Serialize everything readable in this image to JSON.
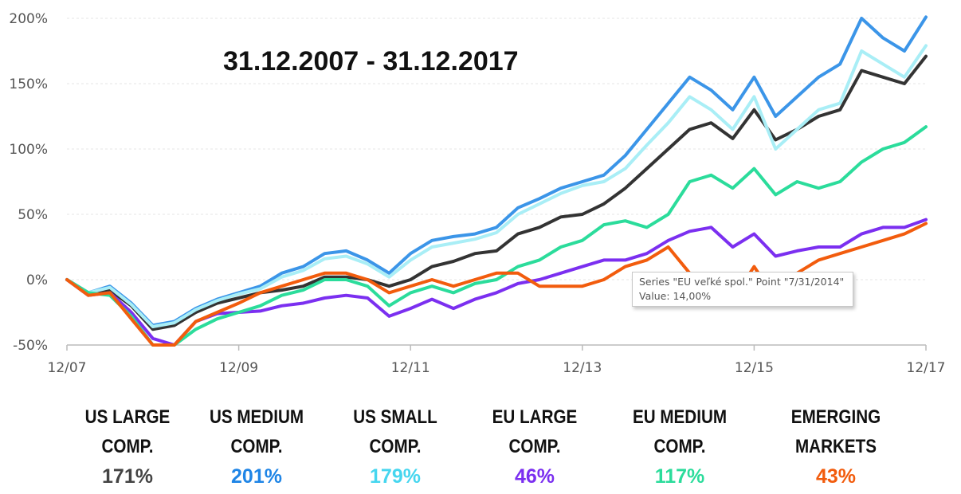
{
  "chart_data": {
    "type": "line",
    "title": "31.12.2007 - 31.12.2017",
    "y_ticks": [
      "200%",
      "150%",
      "100%",
      "50%",
      "0%",
      "-50%"
    ],
    "y_tick_values": [
      200,
      150,
      100,
      50,
      0,
      -50
    ],
    "x_ticks": [
      "12/07",
      "12/09",
      "12/11",
      "12/13",
      "12/15",
      "12/17"
    ],
    "ylim": [
      -50,
      205
    ],
    "xlim": [
      2007.92,
      2017.92
    ],
    "grid": true,
    "series": [
      {
        "name": "US LARGE COMP.",
        "color": "#333333",
        "points": [
          [
            2007.92,
            0
          ],
          [
            2008.17,
            -10
          ],
          [
            2008.42,
            -8
          ],
          [
            2008.67,
            -20
          ],
          [
            2008.92,
            -38
          ],
          [
            2009.17,
            -35
          ],
          [
            2009.42,
            -25
          ],
          [
            2009.67,
            -18
          ],
          [
            2009.92,
            -14
          ],
          [
            2010.17,
            -10
          ],
          [
            2010.42,
            -8
          ],
          [
            2010.67,
            -5
          ],
          [
            2010.92,
            2
          ],
          [
            2011.17,
            2
          ],
          [
            2011.42,
            0
          ],
          [
            2011.67,
            -5
          ],
          [
            2011.92,
            0
          ],
          [
            2012.17,
            10
          ],
          [
            2012.42,
            14
          ],
          [
            2012.67,
            20
          ],
          [
            2012.92,
            22
          ],
          [
            2013.17,
            35
          ],
          [
            2013.42,
            40
          ],
          [
            2013.67,
            48
          ],
          [
            2013.92,
            50
          ],
          [
            2014.17,
            58
          ],
          [
            2014.42,
            70
          ],
          [
            2014.67,
            85
          ],
          [
            2014.92,
            100
          ],
          [
            2015.17,
            115
          ],
          [
            2015.42,
            120
          ],
          [
            2015.67,
            108
          ],
          [
            2015.92,
            130
          ],
          [
            2016.17,
            107
          ],
          [
            2016.42,
            115
          ],
          [
            2016.67,
            125
          ],
          [
            2016.92,
            130
          ],
          [
            2017.17,
            160
          ],
          [
            2017.42,
            155
          ],
          [
            2017.67,
            150
          ],
          [
            2017.92,
            171
          ]
        ]
      },
      {
        "name": "US MEDIUM COMP.",
        "color": "#3b95e8",
        "points": [
          [
            2007.92,
            0
          ],
          [
            2008.17,
            -10
          ],
          [
            2008.42,
            -5
          ],
          [
            2008.67,
            -18
          ],
          [
            2008.92,
            -35
          ],
          [
            2009.17,
            -32
          ],
          [
            2009.42,
            -22
          ],
          [
            2009.67,
            -15
          ],
          [
            2009.92,
            -10
          ],
          [
            2010.17,
            -5
          ],
          [
            2010.42,
            5
          ],
          [
            2010.67,
            10
          ],
          [
            2010.92,
            20
          ],
          [
            2011.17,
            22
          ],
          [
            2011.42,
            15
          ],
          [
            2011.67,
            5
          ],
          [
            2011.92,
            20
          ],
          [
            2012.17,
            30
          ],
          [
            2012.42,
            33
          ],
          [
            2012.67,
            35
          ],
          [
            2012.92,
            40
          ],
          [
            2013.17,
            55
          ],
          [
            2013.42,
            62
          ],
          [
            2013.67,
            70
          ],
          [
            2013.92,
            75
          ],
          [
            2014.17,
            80
          ],
          [
            2014.42,
            95
          ],
          [
            2014.67,
            115
          ],
          [
            2014.92,
            135
          ],
          [
            2015.17,
            155
          ],
          [
            2015.42,
            145
          ],
          [
            2015.67,
            130
          ],
          [
            2015.92,
            155
          ],
          [
            2016.17,
            125
          ],
          [
            2016.42,
            140
          ],
          [
            2016.67,
            155
          ],
          [
            2016.92,
            165
          ],
          [
            2017.17,
            200
          ],
          [
            2017.42,
            185
          ],
          [
            2017.67,
            175
          ],
          [
            2017.92,
            201
          ]
        ]
      },
      {
        "name": "US SMALL COMP.",
        "color": "#a9eef6",
        "points": [
          [
            2007.92,
            0
          ],
          [
            2008.17,
            -10
          ],
          [
            2008.42,
            -6
          ],
          [
            2008.67,
            -19
          ],
          [
            2008.92,
            -36
          ],
          [
            2009.17,
            -33
          ],
          [
            2009.42,
            -23
          ],
          [
            2009.67,
            -16
          ],
          [
            2009.92,
            -11
          ],
          [
            2010.17,
            -7
          ],
          [
            2010.42,
            2
          ],
          [
            2010.67,
            7
          ],
          [
            2010.92,
            16
          ],
          [
            2011.17,
            18
          ],
          [
            2011.42,
            12
          ],
          [
            2011.67,
            2
          ],
          [
            2011.92,
            15
          ],
          [
            2012.17,
            25
          ],
          [
            2012.42,
            28
          ],
          [
            2012.67,
            31
          ],
          [
            2012.92,
            36
          ],
          [
            2013.17,
            50
          ],
          [
            2013.42,
            58
          ],
          [
            2013.67,
            66
          ],
          [
            2013.92,
            72
          ],
          [
            2014.17,
            75
          ],
          [
            2014.42,
            85
          ],
          [
            2014.67,
            103
          ],
          [
            2014.92,
            120
          ],
          [
            2015.17,
            140
          ],
          [
            2015.42,
            130
          ],
          [
            2015.67,
            115
          ],
          [
            2015.92,
            140
          ],
          [
            2016.17,
            100
          ],
          [
            2016.42,
            115
          ],
          [
            2016.67,
            130
          ],
          [
            2016.92,
            135
          ],
          [
            2017.17,
            175
          ],
          [
            2017.42,
            165
          ],
          [
            2017.67,
            155
          ],
          [
            2017.92,
            179
          ]
        ]
      },
      {
        "name": "EU LARGE COMP.",
        "color": "#7b2ff0",
        "points": [
          [
            2007.92,
            0
          ],
          [
            2008.17,
            -12
          ],
          [
            2008.42,
            -10
          ],
          [
            2008.67,
            -25
          ],
          [
            2008.92,
            -45
          ],
          [
            2009.17,
            -50
          ],
          [
            2009.42,
            -32
          ],
          [
            2009.67,
            -26
          ],
          [
            2009.92,
            -25
          ],
          [
            2010.17,
            -24
          ],
          [
            2010.42,
            -20
          ],
          [
            2010.67,
            -18
          ],
          [
            2010.92,
            -14
          ],
          [
            2011.17,
            -12
          ],
          [
            2011.42,
            -14
          ],
          [
            2011.67,
            -28
          ],
          [
            2011.92,
            -22
          ],
          [
            2012.17,
            -15
          ],
          [
            2012.42,
            -22
          ],
          [
            2012.67,
            -15
          ],
          [
            2012.92,
            -10
          ],
          [
            2013.17,
            -3
          ],
          [
            2013.42,
            0
          ],
          [
            2013.67,
            5
          ],
          [
            2013.92,
            10
          ],
          [
            2014.17,
            15
          ],
          [
            2014.42,
            15
          ],
          [
            2014.67,
            20
          ],
          [
            2014.92,
            30
          ],
          [
            2015.17,
            37
          ],
          [
            2015.42,
            40
          ],
          [
            2015.67,
            25
          ],
          [
            2015.92,
            35
          ],
          [
            2016.17,
            18
          ],
          [
            2016.42,
            22
          ],
          [
            2016.67,
            25
          ],
          [
            2016.92,
            25
          ],
          [
            2017.17,
            35
          ],
          [
            2017.42,
            40
          ],
          [
            2017.67,
            40
          ],
          [
            2017.92,
            46
          ]
        ]
      },
      {
        "name": "EU MEDIUM COMP.",
        "color": "#2bdc9b",
        "points": [
          [
            2007.92,
            0
          ],
          [
            2008.17,
            -10
          ],
          [
            2008.42,
            -12
          ],
          [
            2008.67,
            -28
          ],
          [
            2008.92,
            -50
          ],
          [
            2009.17,
            -50
          ],
          [
            2009.42,
            -38
          ],
          [
            2009.67,
            -30
          ],
          [
            2009.92,
            -25
          ],
          [
            2010.17,
            -20
          ],
          [
            2010.42,
            -12
          ],
          [
            2010.67,
            -8
          ],
          [
            2010.92,
            0
          ],
          [
            2011.17,
            0
          ],
          [
            2011.42,
            -5
          ],
          [
            2011.67,
            -20
          ],
          [
            2011.92,
            -10
          ],
          [
            2012.17,
            -5
          ],
          [
            2012.42,
            -10
          ],
          [
            2012.67,
            -3
          ],
          [
            2012.92,
            0
          ],
          [
            2013.17,
            10
          ],
          [
            2013.42,
            15
          ],
          [
            2013.67,
            25
          ],
          [
            2013.92,
            30
          ],
          [
            2014.17,
            42
          ],
          [
            2014.42,
            45
          ],
          [
            2014.67,
            40
          ],
          [
            2014.92,
            50
          ],
          [
            2015.17,
            75
          ],
          [
            2015.42,
            80
          ],
          [
            2015.67,
            70
          ],
          [
            2015.92,
            85
          ],
          [
            2016.17,
            65
          ],
          [
            2016.42,
            75
          ],
          [
            2016.67,
            70
          ],
          [
            2016.92,
            75
          ],
          [
            2017.17,
            90
          ],
          [
            2017.42,
            100
          ],
          [
            2017.67,
            105
          ],
          [
            2017.92,
            117
          ]
        ]
      },
      {
        "name": "EMERGING MARKETS",
        "color": "#f25c0d",
        "points": [
          [
            2007.92,
            0
          ],
          [
            2008.17,
            -12
          ],
          [
            2008.42,
            -10
          ],
          [
            2008.67,
            -30
          ],
          [
            2008.92,
            -50
          ],
          [
            2009.17,
            -50
          ],
          [
            2009.42,
            -32
          ],
          [
            2009.67,
            -25
          ],
          [
            2009.92,
            -18
          ],
          [
            2010.17,
            -10
          ],
          [
            2010.42,
            -5
          ],
          [
            2010.67,
            0
          ],
          [
            2010.92,
            5
          ],
          [
            2011.17,
            5
          ],
          [
            2011.42,
            0
          ],
          [
            2011.67,
            -10
          ],
          [
            2011.92,
            -5
          ],
          [
            2012.17,
            0
          ],
          [
            2012.42,
            -5
          ],
          [
            2012.67,
            0
          ],
          [
            2012.92,
            5
          ],
          [
            2013.17,
            5
          ],
          [
            2013.42,
            -5
          ],
          [
            2013.67,
            -5
          ],
          [
            2013.92,
            -5
          ],
          [
            2014.17,
            0
          ],
          [
            2014.42,
            10
          ],
          [
            2014.67,
            15
          ],
          [
            2014.92,
            25
          ],
          [
            2015.17,
            5
          ],
          [
            2015.42,
            -10
          ],
          [
            2015.67,
            -15
          ],
          [
            2015.92,
            10
          ],
          [
            2016.17,
            -15
          ],
          [
            2016.42,
            5
          ],
          [
            2016.67,
            15
          ],
          [
            2016.92,
            20
          ],
          [
            2017.17,
            25
          ],
          [
            2017.42,
            30
          ],
          [
            2017.67,
            35
          ],
          [
            2017.92,
            43
          ]
        ]
      }
    ]
  },
  "tooltip": {
    "line1": "Series \"EU veľké spol.\" Point \"7/31/2014\"",
    "line2": "Value: 14,00%"
  },
  "summary": [
    {
      "line1": "US LARGE",
      "line2": "COMP.",
      "value": "171%",
      "color": "#444444"
    },
    {
      "line1": "US MEDIUM",
      "line2": "COMP.",
      "value": "201%",
      "color": "#1f85e6"
    },
    {
      "line1": "US SMALL",
      "line2": "COMP.",
      "value": "179%",
      "color": "#46d6ef"
    },
    {
      "line1": "EU LARGE",
      "line2": "COMP.",
      "value": "46%",
      "color": "#7b2ff0"
    },
    {
      "line1": "EU MEDIUM",
      "line2": "COMP.",
      "value": "117%",
      "color": "#2bdc9b"
    },
    {
      "line1": "EMERGING",
      "line2": "MARKETS",
      "value": "43%",
      "color": "#f25c0d"
    }
  ]
}
